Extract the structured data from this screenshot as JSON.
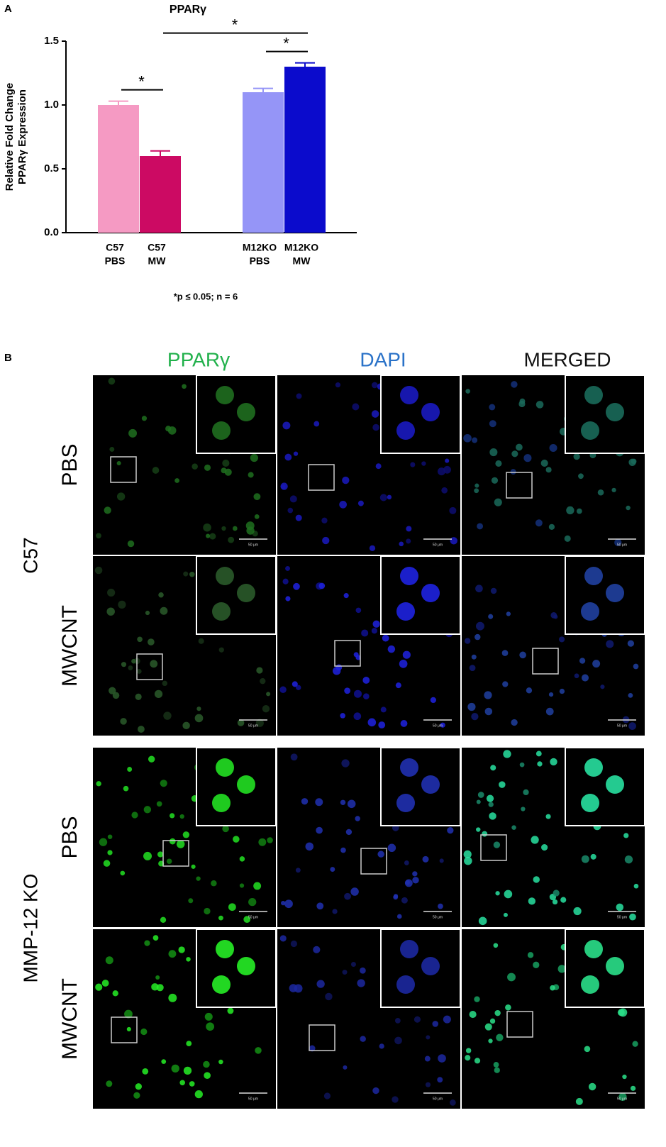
{
  "chart_data": {
    "type": "bar",
    "panel_label": "A",
    "title": "PPARγ",
    "y_label": [
      "Relative Fold Change",
      "PPARγ Expression"
    ],
    "categories": [
      [
        "C57",
        "PBS"
      ],
      [
        "C57",
        "MW"
      ],
      [
        "M12KO",
        "PBS"
      ],
      [
        "M12KO",
        "MW"
      ]
    ],
    "values": [
      1.0,
      0.6,
      1.1,
      1.3
    ],
    "errors": [
      0.03,
      0.04,
      0.03,
      0.03
    ],
    "colors": [
      "#f59ac3",
      "#cc0a63",
      "#9595f7",
      "#0b0bcc"
    ],
    "ylim": [
      0,
      1.5
    ],
    "yticks": [
      {
        "value": 0,
        "label": "0.0"
      },
      0.5,
      {
        "value": 1,
        "label": "1.0"
      },
      1.5
    ],
    "significance": [
      {
        "between": [
          0,
          1
        ],
        "label": "*"
      },
      {
        "between": [
          2,
          3
        ],
        "label": "*"
      },
      {
        "between": [
          1,
          3
        ],
        "label": "*"
      }
    ],
    "note": "*p ≤ 0.05; n = 6"
  },
  "panel_b": {
    "panel_label": "B",
    "columns": [
      "PPARγ",
      "DAPI",
      "MERGED"
    ],
    "column_colors": [
      "#22b14c",
      "#2a72c8",
      "#111111"
    ],
    "groups": [
      {
        "label": "C57",
        "rows": [
          "PBS",
          "MWCNT"
        ]
      },
      {
        "label": "MMP-12 KO",
        "rows": [
          "PBS",
          "MWCNT"
        ]
      }
    ],
    "scale_bar": "50 μm"
  }
}
